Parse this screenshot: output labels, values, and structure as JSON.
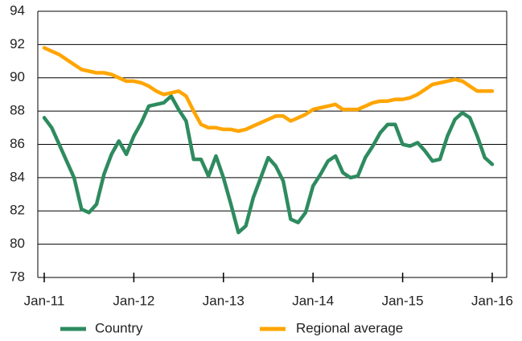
{
  "chart_data": {
    "type": "line",
    "categories": [
      "Jan-11",
      null,
      null,
      null,
      null,
      null,
      null,
      null,
      null,
      null,
      null,
      null,
      "Jan-12",
      null,
      null,
      null,
      null,
      null,
      null,
      null,
      null,
      null,
      null,
      null,
      "Jan-13",
      null,
      null,
      null,
      null,
      null,
      null,
      null,
      null,
      null,
      null,
      null,
      "Jan-14",
      null,
      null,
      null,
      null,
      null,
      null,
      null,
      null,
      null,
      null,
      null,
      "Jan-15",
      null,
      null,
      null,
      null,
      null,
      null,
      null,
      null,
      null,
      null,
      null,
      "Jan-16"
    ],
    "series": [
      {
        "name": "Country",
        "color": "#2e8b5f",
        "values": [
          87.6,
          87.0,
          86.0,
          85.0,
          84.0,
          82.1,
          81.9,
          82.4,
          84.2,
          85.4,
          86.2,
          85.4,
          86.5,
          87.3,
          88.3,
          88.4,
          88.5,
          88.9,
          88.1,
          87.4,
          85.1,
          85.1,
          84.1,
          85.3,
          84.0,
          82.4,
          80.7,
          81.1,
          82.8,
          84.0,
          85.2,
          84.7,
          83.8,
          81.5,
          81.3,
          81.9,
          83.5,
          84.2,
          85.0,
          85.3,
          84.3,
          84.0,
          84.1,
          85.2,
          85.9,
          86.7,
          87.2,
          87.2,
          86.0,
          85.9,
          86.1,
          85.6,
          85.0,
          85.1,
          86.5,
          87.5,
          87.9,
          87.6,
          86.5,
          85.2,
          84.8
        ]
      },
      {
        "name": "Regional average",
        "color": "#ffa500",
        "values": [
          91.8,
          91.6,
          91.4,
          91.1,
          90.8,
          90.5,
          90.4,
          90.3,
          90.3,
          90.2,
          90.0,
          89.8,
          89.8,
          89.7,
          89.5,
          89.2,
          89.0,
          89.1,
          89.2,
          88.9,
          88.0,
          87.2,
          87.0,
          87.0,
          86.9,
          86.9,
          86.8,
          86.9,
          87.1,
          87.3,
          87.5,
          87.7,
          87.7,
          87.4,
          87.6,
          87.8,
          88.1,
          88.2,
          88.3,
          88.4,
          88.1,
          88.1,
          88.1,
          88.3,
          88.5,
          88.6,
          88.6,
          88.7,
          88.7,
          88.8,
          89.0,
          89.3,
          89.6,
          89.7,
          89.8,
          89.9,
          89.8,
          89.5,
          89.2,
          89.2,
          89.2
        ]
      }
    ],
    "ylim": [
      78,
      94
    ],
    "yticks": [
      78,
      80,
      82,
      84,
      86,
      88,
      90,
      92,
      94
    ],
    "grid": true,
    "legend": "bottom"
  }
}
